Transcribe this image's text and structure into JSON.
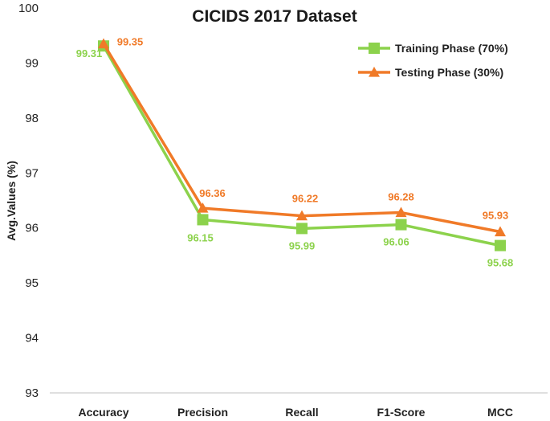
{
  "chart_data": {
    "type": "line",
    "title": "CICIDS 2017 Dataset",
    "xlabel": "",
    "ylabel": "Avg.Values (%)",
    "ylim": [
      93,
      100
    ],
    "yticks": [
      "93",
      "94",
      "95",
      "96",
      "97",
      "98",
      "99",
      "100"
    ],
    "categories": [
      "Accuracy",
      "Precision",
      "Recall",
      "F1-Score",
      "MCC"
    ],
    "grid": false,
    "legend_position": "top-right",
    "series": [
      {
        "name": "Training Phase (70%)",
        "marker": "square",
        "color": "#8CD24C",
        "values": [
          99.31,
          96.15,
          95.99,
          96.06,
          95.68
        ],
        "labels": [
          "99.31",
          "96.15",
          "95.99",
          "96.06",
          "95.68"
        ]
      },
      {
        "name": "Testing Phase (30%)",
        "marker": "triangle",
        "color": "#F07A28",
        "values": [
          99.35,
          96.36,
          96.22,
          96.28,
          95.93
        ],
        "labels": [
          "99.35",
          "96.36",
          "96.22",
          "96.28",
          "95.93"
        ]
      }
    ]
  }
}
